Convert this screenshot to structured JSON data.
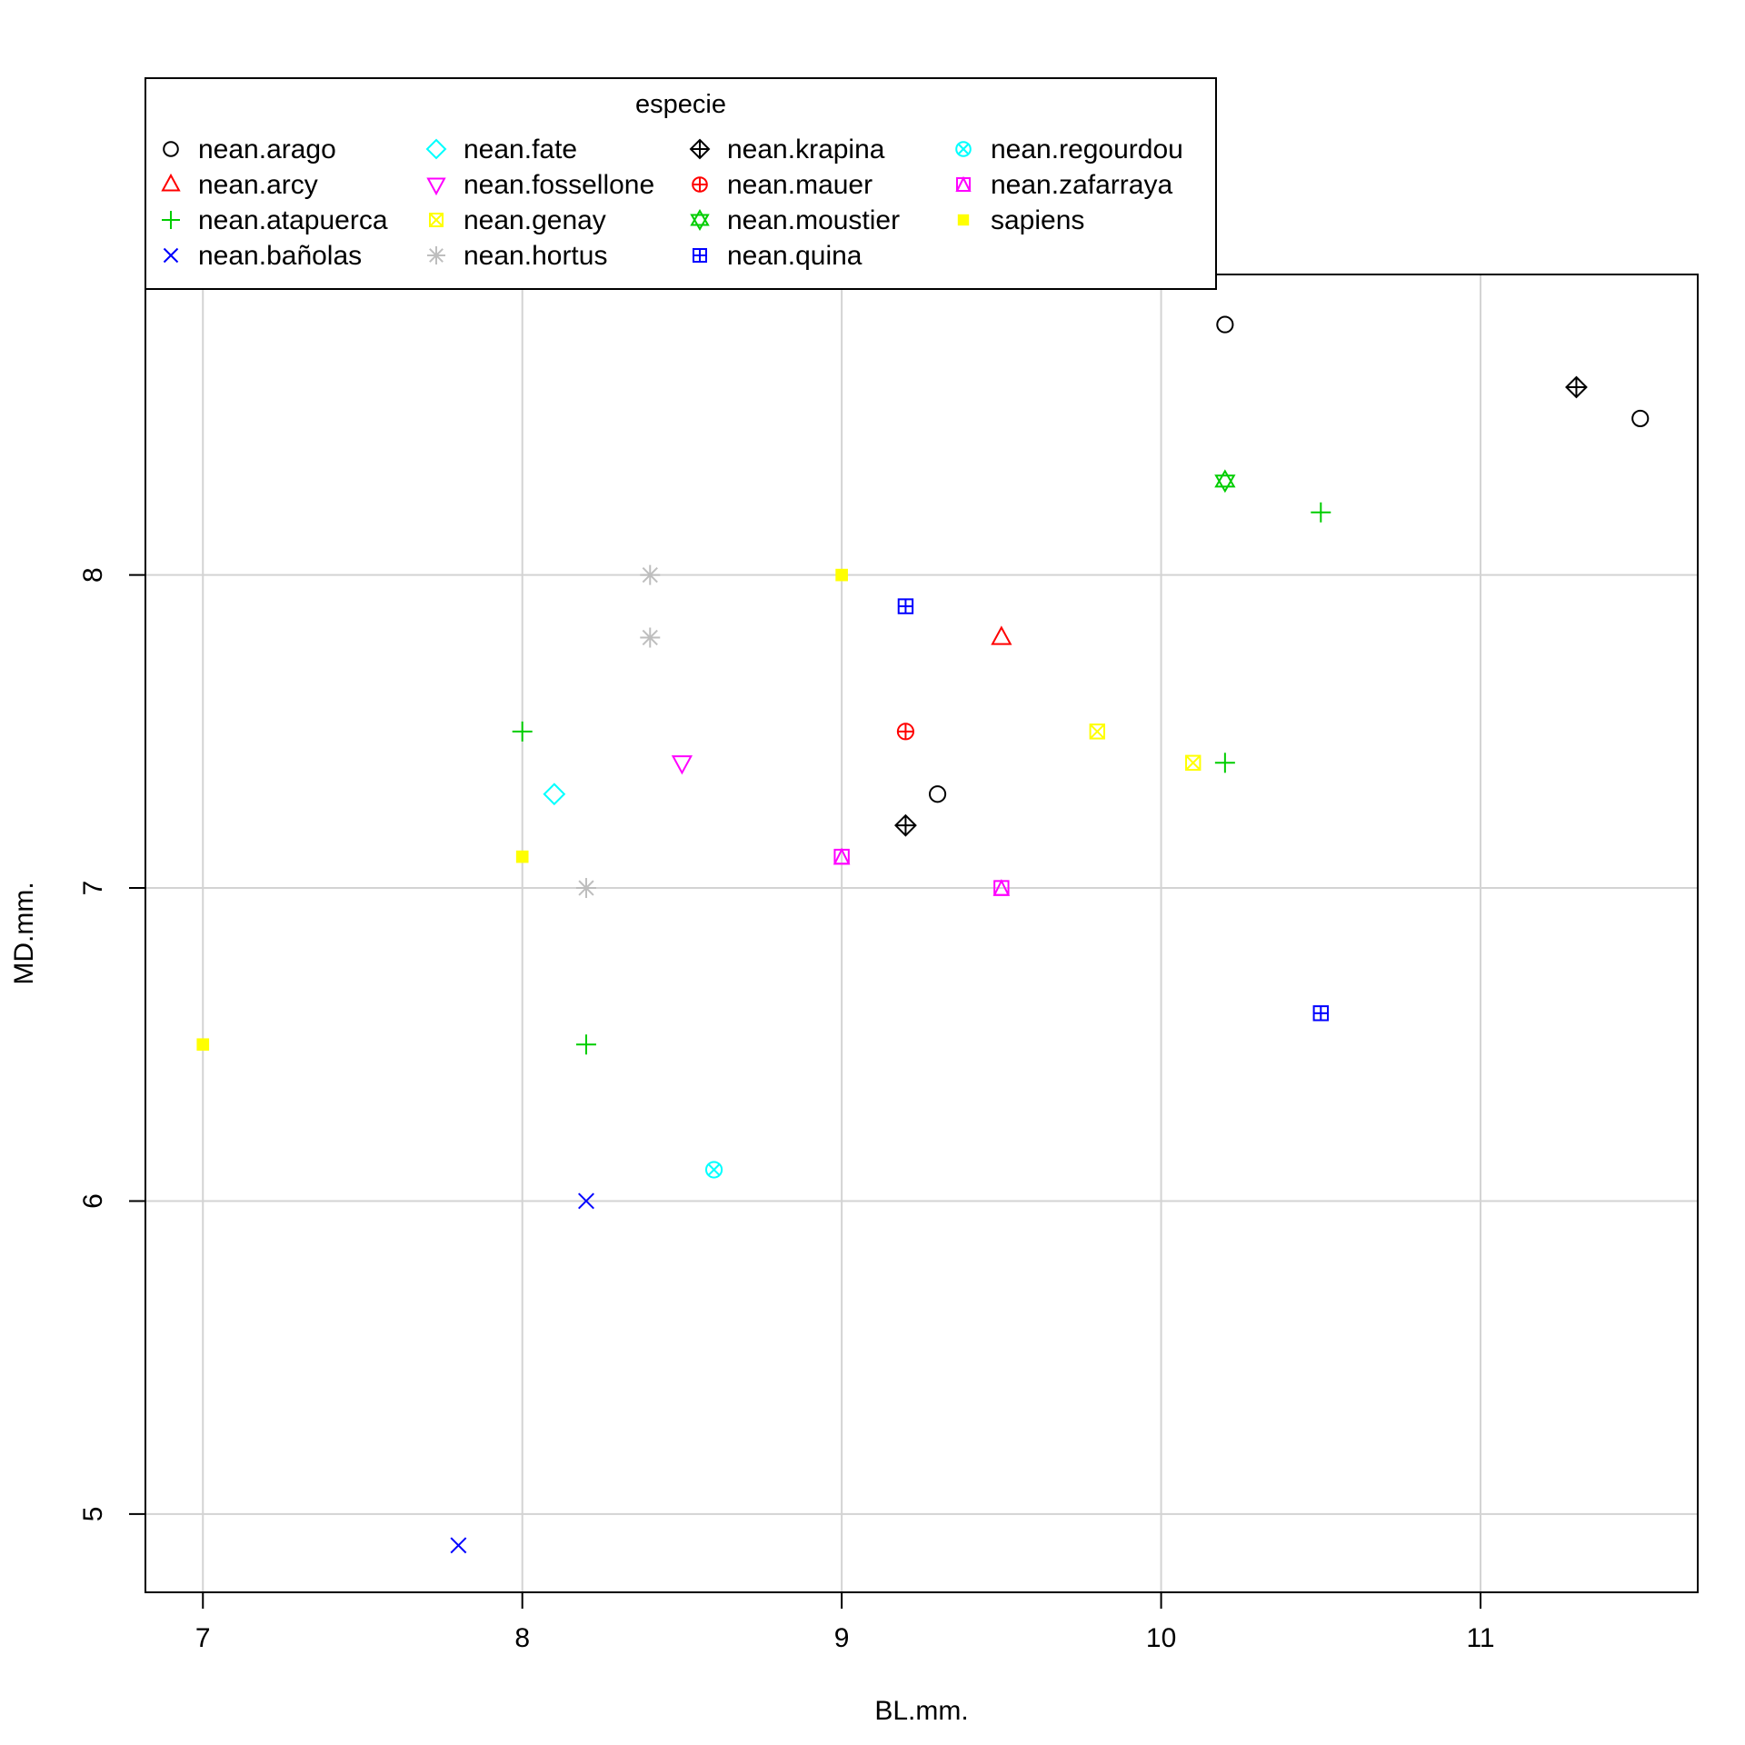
{
  "chart_data": {
    "type": "scatter",
    "title": "",
    "xlabel": "BL.mm.",
    "ylabel": "MD.mm.",
    "xlim": [
      6.82,
      11.68
    ],
    "ylim": [
      4.75,
      8.96
    ],
    "x_ticks": [
      7,
      8,
      9,
      10,
      11
    ],
    "y_ticks": [
      5,
      6,
      7,
      8
    ],
    "x_tick_labels": [
      "7",
      "8",
      "9",
      "10",
      "11"
    ],
    "y_tick_labels": [
      "5",
      "6",
      "7",
      "8"
    ],
    "grid": true,
    "legend": {
      "title": "especie",
      "placement": "top-left, overlapping the plot frame",
      "columns": 4
    },
    "series": [
      {
        "name": "nean.arago",
        "color": "#000000",
        "marker": "circle",
        "points": [
          [
            10.2,
            8.8
          ],
          [
            11.5,
            8.5
          ],
          [
            9.3,
            7.3
          ]
        ]
      },
      {
        "name": "nean.arcy",
        "color": "#ff0000",
        "marker": "triangle-up",
        "points": [
          [
            9.5,
            7.8
          ]
        ]
      },
      {
        "name": "nean.atapuerca",
        "color": "#00cd00",
        "marker": "plus",
        "points": [
          [
            10.5,
            8.2
          ],
          [
            8.0,
            7.5
          ],
          [
            10.2,
            7.4
          ],
          [
            8.2,
            6.5
          ]
        ]
      },
      {
        "name": "nean.bañolas",
        "color": "#0000ff",
        "marker": "cross",
        "points": [
          [
            8.2,
            6.0
          ],
          [
            7.8,
            4.9
          ]
        ]
      },
      {
        "name": "nean.fate",
        "color": "#00ffff",
        "marker": "diamond",
        "points": [
          [
            8.1,
            7.3
          ]
        ]
      },
      {
        "name": "nean.fossellone",
        "color": "#ff00ff",
        "marker": "triangle-down",
        "points": [
          [
            8.5,
            7.4
          ]
        ]
      },
      {
        "name": "nean.genay",
        "color": "#ffff00",
        "marker": "square-x",
        "points": [
          [
            9.8,
            7.5
          ],
          [
            10.1,
            7.4
          ]
        ]
      },
      {
        "name": "nean.hortus",
        "color": "#bebebe",
        "marker": "asterisk",
        "points": [
          [
            8.4,
            8.0
          ],
          [
            8.4,
            7.8
          ],
          [
            8.2,
            7.0
          ]
        ]
      },
      {
        "name": "nean.krapina",
        "color": "#000000",
        "marker": "diamond-plus",
        "points": [
          [
            11.3,
            8.6
          ],
          [
            9.2,
            7.2
          ]
        ]
      },
      {
        "name": "nean.mauer",
        "color": "#ff0000",
        "marker": "circle-plus",
        "points": [
          [
            9.2,
            7.5
          ]
        ]
      },
      {
        "name": "nean.moustier",
        "color": "#00cd00",
        "marker": "star-of-david",
        "points": [
          [
            10.2,
            8.3
          ]
        ]
      },
      {
        "name": "nean.quina",
        "color": "#0000ff",
        "marker": "square-plus",
        "points": [
          [
            9.2,
            7.9
          ],
          [
            10.5,
            6.6
          ]
        ]
      },
      {
        "name": "nean.regourdou",
        "color": "#00ffff",
        "marker": "circle-x",
        "points": [
          [
            8.6,
            6.1
          ]
        ]
      },
      {
        "name": "nean.zafarraya",
        "color": "#ff00ff",
        "marker": "square-triangle",
        "points": [
          [
            9.0,
            7.1
          ],
          [
            9.5,
            7.0
          ]
        ]
      },
      {
        "name": "sapiens",
        "color": "#ffff00",
        "marker": "filled-square",
        "points": [
          [
            9.0,
            8.0
          ],
          [
            8.0,
            7.1
          ],
          [
            7.0,
            6.5
          ]
        ]
      }
    ]
  }
}
